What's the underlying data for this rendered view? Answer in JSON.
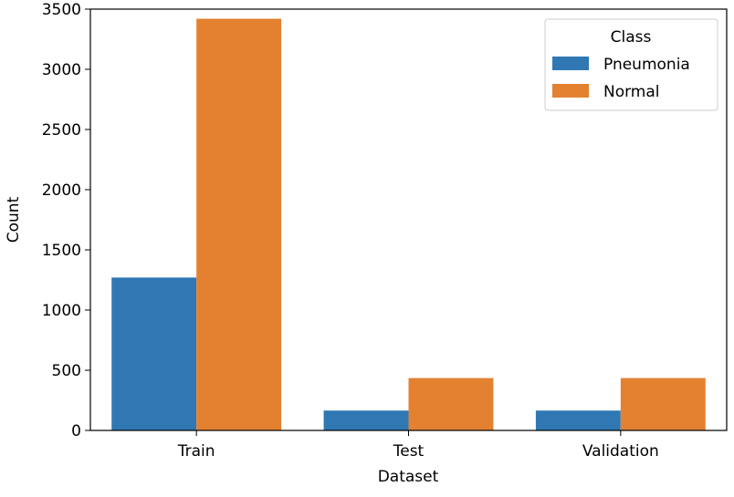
{
  "chart_data": {
    "type": "bar",
    "xlabel": "Dataset",
    "ylabel": "Count",
    "categories": [
      "Train",
      "Test",
      "Validation"
    ],
    "series": [
      {
        "name": "Pneumonia",
        "color": "#2f78b4",
        "values": [
          1270,
          165,
          165
        ]
      },
      {
        "name": "Normal",
        "color": "#e38130",
        "values": [
          3420,
          435,
          435
        ]
      }
    ],
    "ylim": [
      0,
      3500
    ],
    "yticks": [
      0,
      500,
      1000,
      1500,
      2000,
      2500,
      3000,
      3500
    ],
    "grid": false,
    "legend": {
      "title": "Class",
      "placement": "top-right"
    }
  }
}
